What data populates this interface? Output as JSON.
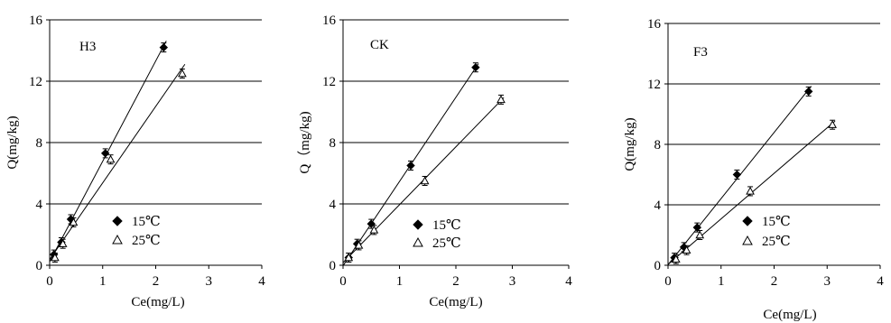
{
  "chart_data": [
    {
      "type": "scatter",
      "title": "H3",
      "xlabel": "Ce(mg/L)",
      "ylabel": "Q(mg/kg)",
      "xlim": [
        0,
        4
      ],
      "ylim": [
        0,
        16
      ],
      "xticks": [
        "0",
        "1",
        "2",
        "3",
        "4"
      ],
      "yticks": [
        "0",
        "4",
        "8",
        "12",
        "16"
      ],
      "grid": "horizontal",
      "legend_position": "bottom-center",
      "series": [
        {
          "name": "15℃",
          "marker": "filled-diamond",
          "color": "#000000",
          "x": [
            0.08,
            0.22,
            0.4,
            1.05,
            2.15
          ],
          "y": [
            0.7,
            1.5,
            3.0,
            7.3,
            14.2
          ]
        },
        {
          "name": "25℃",
          "marker": "open-triangle",
          "color": "#000000",
          "x": [
            0.1,
            0.25,
            0.45,
            1.15,
            2.5
          ],
          "y": [
            0.5,
            1.4,
            2.8,
            6.9,
            12.5
          ]
        }
      ]
    },
    {
      "type": "scatter",
      "title": "CK",
      "xlabel": "Ce(mg/L)",
      "ylabel": "Q（mg/kg)",
      "xlim": [
        0,
        4
      ],
      "ylim": [
        0,
        16
      ],
      "xticks": [
        "0",
        "1",
        "2",
        "3",
        "4"
      ],
      "yticks": [
        "0",
        "4",
        "8",
        "12",
        "16"
      ],
      "grid": "horizontal",
      "legend_position": "bottom-center",
      "series": [
        {
          "name": "15℃",
          "marker": "filled-diamond",
          "color": "#000000",
          "x": [
            0.1,
            0.25,
            0.5,
            1.2,
            2.35
          ],
          "y": [
            0.5,
            1.4,
            2.7,
            6.5,
            12.9
          ]
        },
        {
          "name": "25℃",
          "marker": "open-triangle",
          "color": "#000000",
          "x": [
            0.1,
            0.28,
            0.55,
            1.45,
            2.8
          ],
          "y": [
            0.5,
            1.3,
            2.3,
            5.5,
            10.8
          ]
        }
      ]
    },
    {
      "type": "scatter",
      "title": "F3",
      "xlabel": "Ce(mg/L)",
      "ylabel": "Q(mg/kg)",
      "xlim": [
        0,
        4
      ],
      "ylim": [
        0,
        16
      ],
      "xticks": [
        "0",
        "1",
        "2",
        "3",
        "4"
      ],
      "yticks": [
        "0",
        "4",
        "8",
        "12",
        "16"
      ],
      "grid": "horizontal",
      "legend_position": "bottom-center",
      "series": [
        {
          "name": "15℃",
          "marker": "filled-diamond",
          "color": "#000000",
          "x": [
            0.12,
            0.3,
            0.55,
            1.3,
            2.65
          ],
          "y": [
            0.5,
            1.2,
            2.5,
            6.0,
            11.5
          ]
        },
        {
          "name": "25℃",
          "marker": "open-triangle",
          "color": "#000000",
          "x": [
            0.15,
            0.35,
            0.6,
            1.55,
            3.1
          ],
          "y": [
            0.4,
            1.0,
            2.0,
            4.9,
            9.3
          ]
        }
      ]
    }
  ]
}
